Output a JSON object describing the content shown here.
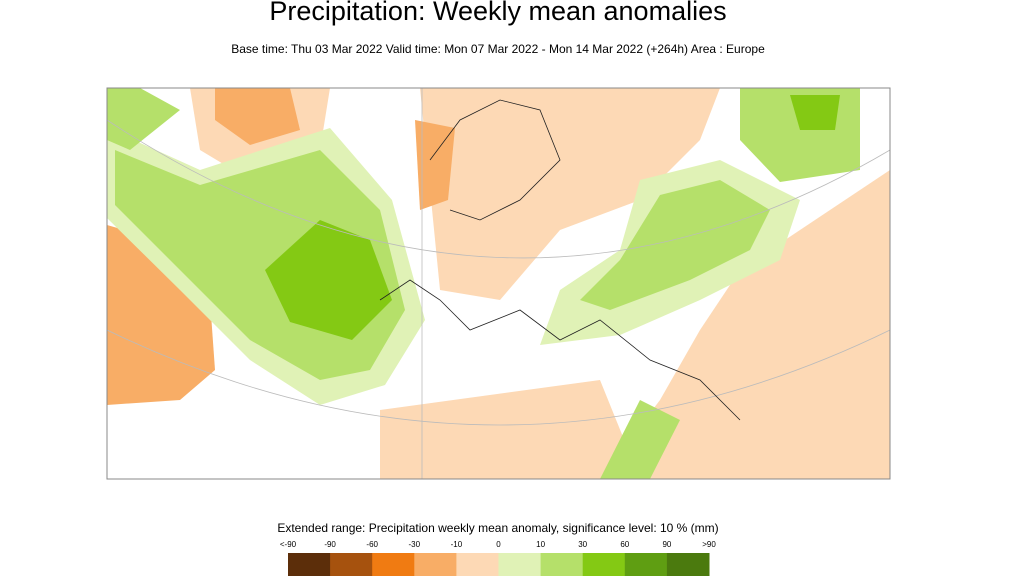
{
  "header": {
    "title": "Precipitation: Weekly mean anomalies",
    "subtitle": "Base time: Thu 03 Mar 2022 Valid time: Mon 07 Mar 2022 - Mon 14 Mar 2022 (+264h) Area : Europe"
  },
  "legend": {
    "title": "Extended range: Precipitation weekly mean anomaly, significance level: 10 % (mm)",
    "labels": [
      "<-90",
      "-90",
      "-60",
      "-30",
      "-10",
      "0",
      "10",
      "30",
      "60",
      "90",
      ">90"
    ],
    "colors": [
      "#5c2e0a",
      "#a6520e",
      "#f07b12",
      "#f8ad66",
      "#fdd9b5",
      "#e0f2b6",
      "#b5e06a",
      "#84c914",
      "#5f9e12",
      "#4b7a0e"
    ]
  }
}
